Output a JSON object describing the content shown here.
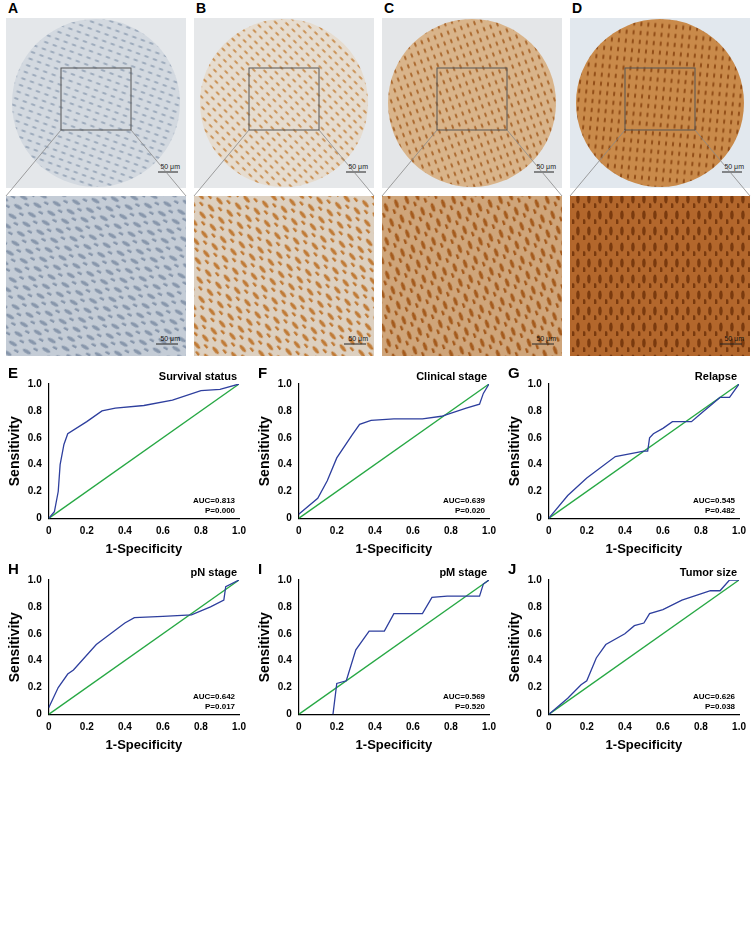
{
  "image_panels": [
    {
      "label": "A",
      "scale_bars": [
        "50 μm",
        "50 μm"
      ]
    },
    {
      "label": "B",
      "scale_bars": [
        "50 μm",
        "50 μm"
      ]
    },
    {
      "label": "C",
      "scale_bars": [
        "50 μm",
        "50 μm"
      ]
    },
    {
      "label": "D",
      "scale_bars": [
        "50 μm",
        "50 μm"
      ]
    }
  ],
  "chart_data": [
    {
      "type": "line",
      "panel": "E",
      "title": "Survival status",
      "x_label": "1-Specificity",
      "y_label": "Sensitivity",
      "annotations": [
        "AUC=0.813",
        "P=0.000"
      ],
      "grid": false,
      "xlim": [
        0,
        1
      ],
      "ylim": [
        0,
        1
      ],
      "xticks": [
        0,
        0.2,
        0.4,
        0.6,
        0.8,
        {
          "value": 1,
          "label": "1.0"
        }
      ],
      "yticks": [
        0,
        0.2,
        0.4,
        0.6,
        0.8,
        {
          "value": 1,
          "label": "1.0"
        }
      ],
      "series": [
        {
          "color": "#2e3f9e",
          "x": [
            0,
            0.03,
            0.05,
            0.06,
            0.08,
            0.1,
            0.2,
            0.28,
            0.35,
            0.5,
            0.65,
            0.8,
            0.9,
            1
          ],
          "values": [
            0,
            0.05,
            0.2,
            0.4,
            0.55,
            0.63,
            0.72,
            0.8,
            0.82,
            0.84,
            0.88,
            0.95,
            0.96,
            1
          ]
        },
        {
          "color": "#27a844",
          "x": [
            0,
            1
          ],
          "values": [
            0,
            1
          ]
        }
      ]
    },
    {
      "type": "line",
      "panel": "F",
      "title": "Clinical stage",
      "x_label": "1-Specificity",
      "y_label": "Sensitivity",
      "annotations": [
        "AUC=0.639",
        "P=0.020"
      ],
      "grid": false,
      "xlim": [
        0,
        1
      ],
      "ylim": [
        0,
        1
      ],
      "xticks": [
        0,
        0.2,
        0.4,
        0.6,
        0.8,
        {
          "value": 1,
          "label": "1.0"
        }
      ],
      "yticks": [
        0,
        0.2,
        0.4,
        0.6,
        0.8,
        {
          "value": 1,
          "label": "1.0"
        }
      ],
      "series": [
        {
          "color": "#2e3f9e",
          "x": [
            0,
            0.1,
            0.15,
            0.2,
            0.28,
            0.32,
            0.38,
            0.5,
            0.65,
            0.75,
            0.88,
            0.95,
            0.97,
            1
          ],
          "values": [
            0.03,
            0.15,
            0.28,
            0.45,
            0.62,
            0.7,
            0.73,
            0.74,
            0.74,
            0.76,
            0.82,
            0.85,
            0.93,
            1
          ]
        },
        {
          "color": "#27a844",
          "x": [
            0,
            1
          ],
          "values": [
            0,
            1
          ]
        }
      ]
    },
    {
      "type": "line",
      "panel": "G",
      "title": "Relapse",
      "x_label": "1-Specificity",
      "y_label": "Sensitivity",
      "annotations": [
        "AUC=0.545",
        "P=0.482"
      ],
      "grid": false,
      "xlim": [
        0,
        1
      ],
      "ylim": [
        0,
        1
      ],
      "xticks": [
        0,
        0.2,
        0.4,
        0.6,
        0.8,
        {
          "value": 1,
          "label": "1.0"
        }
      ],
      "yticks": [
        0,
        0.2,
        0.4,
        0.6,
        0.8,
        {
          "value": 1,
          "label": "1.0"
        }
      ],
      "series": [
        {
          "color": "#2e3f9e",
          "x": [
            0,
            0.1,
            0.2,
            0.35,
            0.5,
            0.52,
            0.53,
            0.55,
            0.6,
            0.65,
            0.75,
            0.8,
            0.9,
            0.95,
            1
          ],
          "values": [
            0,
            0.17,
            0.3,
            0.46,
            0.5,
            0.5,
            0.6,
            0.63,
            0.67,
            0.72,
            0.72,
            0.78,
            0.9,
            0.9,
            1
          ]
        },
        {
          "color": "#27a844",
          "x": [
            0,
            1
          ],
          "values": [
            0,
            1
          ]
        }
      ]
    },
    {
      "type": "line",
      "panel": "H",
      "title": "pN stage",
      "x_label": "1-Specificity",
      "y_label": "Sensitivity",
      "annotations": [
        "AUC=0.642",
        "P=0.017"
      ],
      "grid": false,
      "xlim": [
        0,
        1
      ],
      "ylim": [
        0,
        1
      ],
      "xticks": [
        0,
        0.2,
        0.4,
        0.6,
        0.8,
        {
          "value": 1,
          "label": "1.0"
        }
      ],
      "yticks": [
        0,
        0.2,
        0.4,
        0.6,
        0.8,
        {
          "value": 1,
          "label": "1.0"
        }
      ],
      "series": [
        {
          "color": "#2e3f9e",
          "x": [
            0,
            0.05,
            0.1,
            0.13,
            0.25,
            0.4,
            0.45,
            0.6,
            0.75,
            0.85,
            0.92,
            0.93,
            1
          ],
          "values": [
            0.05,
            0.2,
            0.3,
            0.33,
            0.52,
            0.68,
            0.72,
            0.73,
            0.74,
            0.8,
            0.85,
            0.95,
            1
          ]
        },
        {
          "color": "#27a844",
          "x": [
            0,
            1
          ],
          "values": [
            0,
            1
          ]
        }
      ]
    },
    {
      "type": "line",
      "panel": "I",
      "title": "pM stage",
      "x_label": "1-Specificity",
      "y_label": "Sensitivity",
      "annotations": [
        "AUC=0.569",
        "P=0.520"
      ],
      "grid": false,
      "xlim": [
        0,
        1
      ],
      "ylim": [
        0,
        1
      ],
      "xticks": [
        0,
        0.2,
        0.4,
        0.6,
        0.8,
        {
          "value": 1,
          "label": "1.0"
        }
      ],
      "yticks": [
        0,
        0.2,
        0.4,
        0.6,
        0.8,
        {
          "value": 1,
          "label": "1.0"
        }
      ],
      "series": [
        {
          "color": "#2e3f9e",
          "x": [
            0.18,
            0.2,
            0.25,
            0.3,
            0.37,
            0.45,
            0.5,
            0.55,
            0.6,
            0.65,
            0.7,
            0.78,
            0.9,
            0.95,
            0.97,
            1
          ],
          "values": [
            0,
            0.23,
            0.25,
            0.48,
            0.62,
            0.62,
            0.75,
            0.75,
            0.75,
            0.75,
            0.87,
            0.88,
            0.88,
            0.88,
            0.97,
            1
          ]
        },
        {
          "color": "#27a844",
          "x": [
            0,
            1
          ],
          "values": [
            0,
            1
          ]
        }
      ]
    },
    {
      "type": "line",
      "panel": "J",
      "title": "Tumor size",
      "x_label": "1-Specificity",
      "y_label": "Sensitivity",
      "annotations": [
        "AUC=0.626",
        "P=0.038"
      ],
      "grid": false,
      "xlim": [
        0,
        1
      ],
      "ylim": [
        0,
        1
      ],
      "xticks": [
        0,
        0.2,
        0.4,
        0.6,
        0.8,
        {
          "value": 1,
          "label": "1.0"
        }
      ],
      "yticks": [
        0,
        0.2,
        0.4,
        0.6,
        0.8,
        {
          "value": 1,
          "label": "1.0"
        }
      ],
      "series": [
        {
          "color": "#2e3f9e",
          "x": [
            0,
            0.1,
            0.17,
            0.2,
            0.25,
            0.3,
            0.4,
            0.45,
            0.5,
            0.53,
            0.6,
            0.7,
            0.85,
            0.9,
            0.95,
            1
          ],
          "values": [
            0,
            0.12,
            0.22,
            0.25,
            0.42,
            0.52,
            0.6,
            0.66,
            0.68,
            0.75,
            0.78,
            0.85,
            0.92,
            0.92,
            1,
            1
          ]
        },
        {
          "color": "#27a844",
          "x": [
            0,
            1
          ],
          "values": [
            0,
            1
          ]
        }
      ]
    }
  ]
}
